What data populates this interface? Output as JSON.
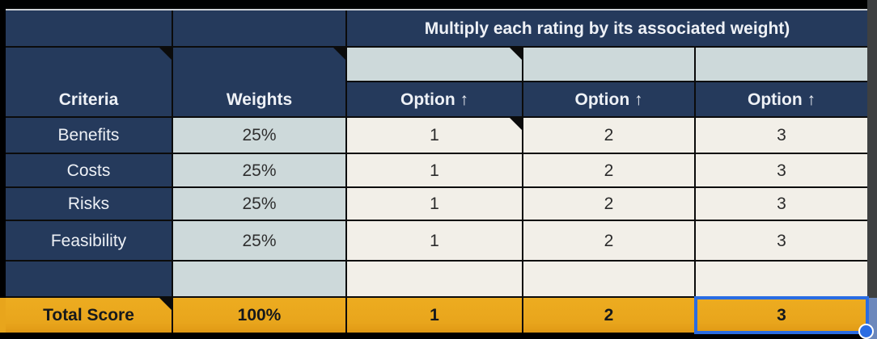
{
  "title": "Multiply each rating by its associated weight)",
  "table": {
    "criteria_header": "Criteria",
    "weights_header": "Weights",
    "option_headers": [
      "Option ↑",
      "Option ↑",
      "Option ↑"
    ],
    "rows": [
      {
        "criteria": "Benefits",
        "weight": "25%",
        "options": [
          "1",
          "2",
          "3"
        ]
      },
      {
        "criteria": "Costs",
        "weight": "25%",
        "options": [
          "1",
          "2",
          "3"
        ]
      },
      {
        "criteria": "Risks",
        "weight": "25%",
        "options": [
          "1",
          "2",
          "3"
        ]
      },
      {
        "criteria": "Feasibility",
        "weight": "25%",
        "options": [
          "1",
          "2",
          "3"
        ]
      }
    ],
    "total": {
      "label": "Total Score",
      "weight": "100%",
      "options": [
        "1",
        "2",
        "3"
      ]
    }
  },
  "selection": {
    "target": "total-score-option-3"
  },
  "colors": {
    "navy": "#253a5c",
    "light_blue_gray": "#cdd9da",
    "cream": "#f2efe8",
    "gold": "#e8a51c",
    "selection_blue": "#2a6ce2",
    "grid_line": "#0b0b0b"
  }
}
